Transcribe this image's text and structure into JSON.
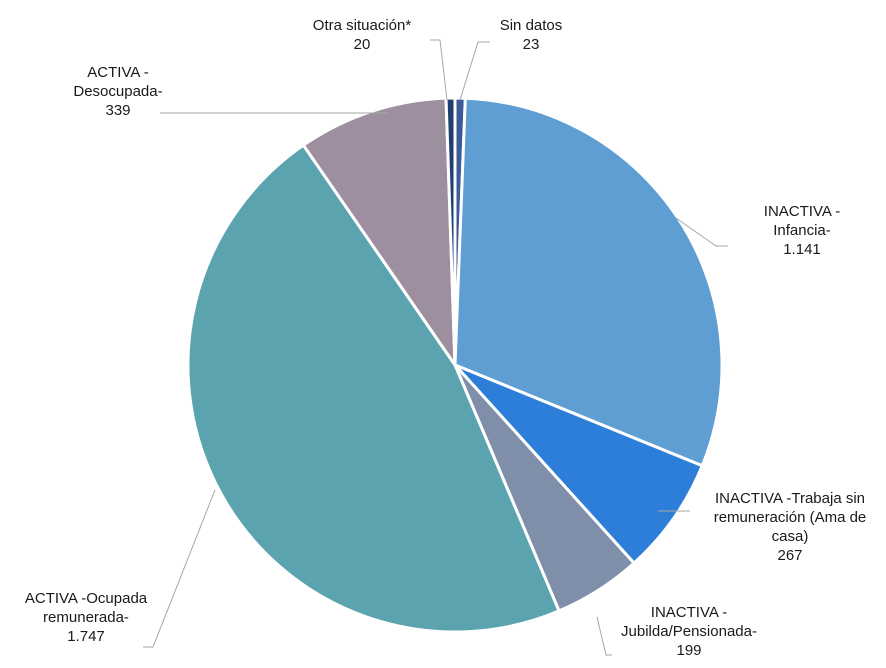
{
  "chart_data": {
    "type": "pie",
    "title": "",
    "slices": [
      {
        "label_lines": [
          "Sin datos",
          "23"
        ],
        "category": "Sin datos",
        "value": 23,
        "color": "#3C5A9A"
      },
      {
        "label_lines": [
          "INACTIVA -",
          "Infancia-",
          "1.141"
        ],
        "category": "INACTIVA - Infancia",
        "value": 1141,
        "color": "#5F9ED3"
      },
      {
        "label_lines": [
          "INACTIVA -Trabaja sin",
          "remuneración (Ama de",
          "casa)",
          "267"
        ],
        "category": "INACTIVA -Trabaja sin remuneración (Ama de casa)",
        "value": 267,
        "color": "#2C7ED8"
      },
      {
        "label_lines": [
          "INACTIVA -",
          "Jubilda/Pensionada-",
          "199"
        ],
        "category": "INACTIVA - Jubilda/Pensionada",
        "value": 199,
        "color": "#7F8FA9"
      },
      {
        "label_lines": [
          "ACTIVA -Ocupada",
          "remunerada-",
          "1.747"
        ],
        "category": "ACTIVA -Ocupada remunerada",
        "value": 1747,
        "color": "#5BA3AE"
      },
      {
        "label_lines": [
          "ACTIVA -",
          "Desocupada-",
          "339"
        ],
        "category": "ACTIVA - Desocupada",
        "value": 339,
        "color": "#9E8FA0"
      },
      {
        "label_lines": [
          "Otra situación*",
          "20"
        ],
        "category": "Otra situación*",
        "value": 20,
        "color": "#1F3F73"
      }
    ]
  }
}
